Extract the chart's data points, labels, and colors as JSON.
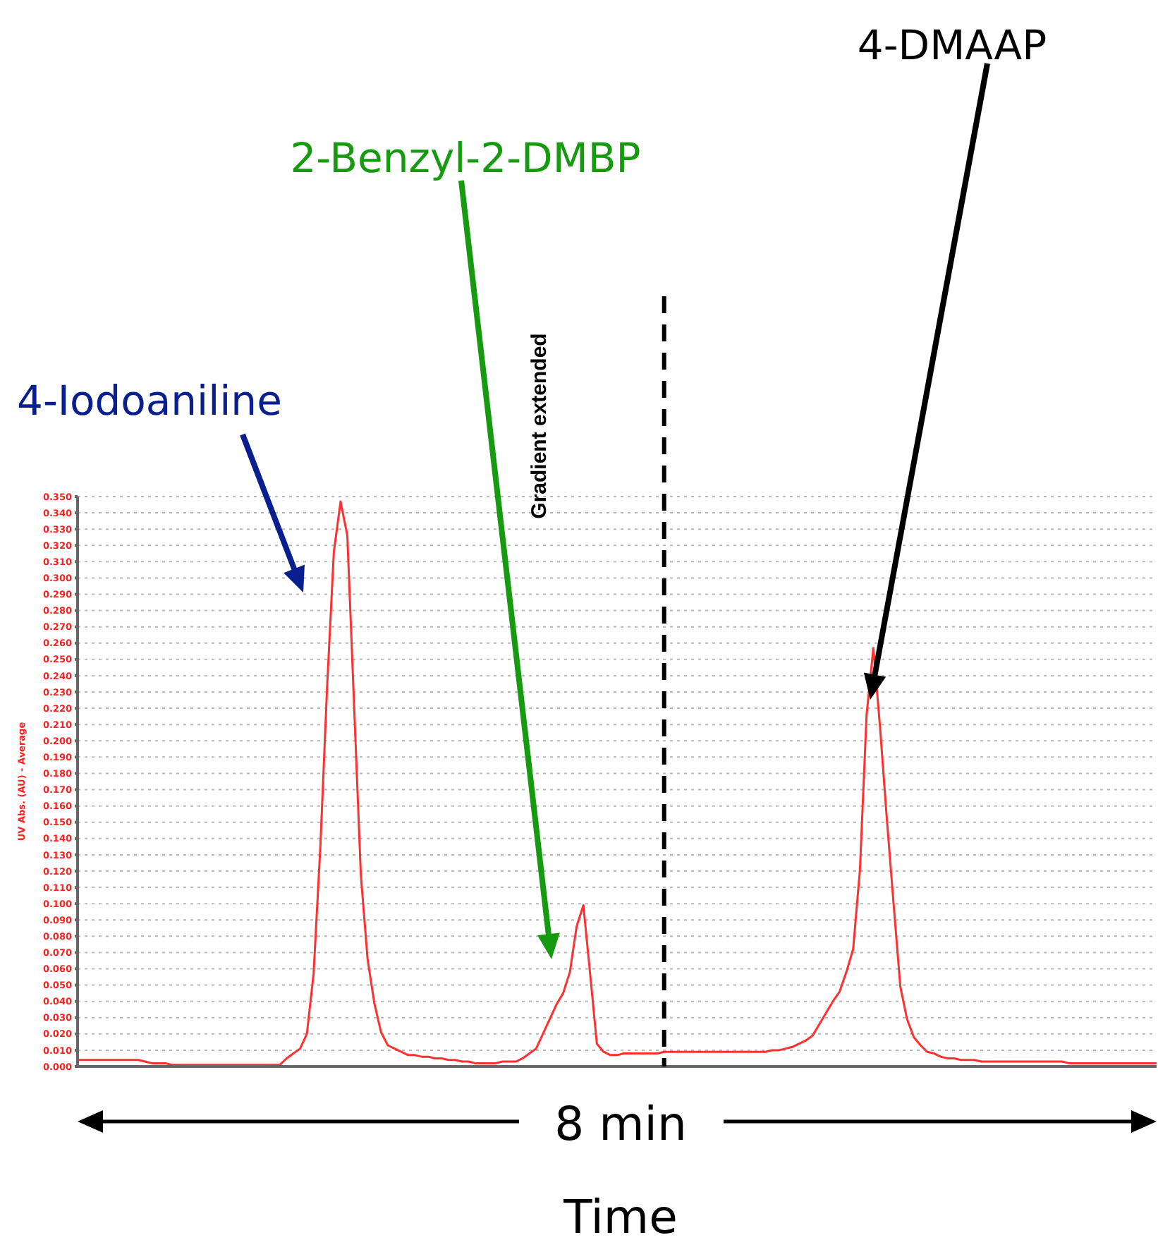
{
  "chart_data": {
    "type": "line",
    "xlabel": "Time",
    "ylabel": "UV Abs. (AU) - Average",
    "categories": [
      null,
      null,
      null,
      null,
      null,
      null,
      null,
      null,
      null,
      null,
      null,
      null,
      null,
      null,
      null,
      null,
      null,
      null,
      null,
      null,
      null,
      null,
      null,
      null,
      null,
      null,
      null,
      null,
      null,
      null,
      null,
      null,
      null,
      null,
      null,
      null,
      null,
      null,
      null,
      null,
      null,
      null,
      null,
      null,
      null,
      null,
      null,
      null,
      null,
      null,
      null,
      null,
      null,
      null,
      null,
      null,
      null,
      null,
      null,
      null,
      null,
      null,
      null,
      null,
      null,
      null,
      null,
      null,
      null,
      null,
      null,
      null,
      null,
      null,
      null,
      null,
      null,
      null,
      null,
      null,
      null,
      null,
      null,
      null,
      null,
      null,
      null,
      null,
      null,
      null,
      null,
      null,
      null,
      null,
      null,
      null,
      null,
      null,
      null,
      null,
      null,
      null,
      null,
      null,
      null,
      null,
      null,
      null,
      null,
      null,
      null,
      null,
      null,
      null,
      null,
      null,
      null,
      null,
      null,
      null,
      null,
      null,
      null,
      null,
      null,
      null,
      null,
      null,
      null,
      null,
      null,
      null,
      null,
      null,
      null,
      null,
      null,
      null,
      null,
      null,
      null,
      null,
      null,
      null,
      null,
      null,
      null,
      null,
      null,
      null,
      null,
      null,
      null,
      null,
      null,
      null,
      null,
      null,
      null,
      null,
      null
    ],
    "series": [
      {
        "color": "#ff3030",
        "values": [
          0.004,
          0.004,
          0.004,
          0.004,
          0.004,
          0.004,
          0.004,
          0.004,
          0.004,
          0.004,
          0.003,
          0.002,
          0.002,
          0.002,
          0.001,
          0.001,
          0.001,
          0.001,
          0.001,
          0.001,
          0.001,
          0.001,
          0.001,
          0.001,
          0.001,
          0.001,
          0.001,
          0.001,
          0.001,
          0.001,
          0.001,
          0.005,
          0.008,
          0.011,
          0.02,
          0.057,
          0.135,
          0.233,
          0.316,
          0.347,
          0.326,
          0.222,
          0.118,
          0.066,
          0.039,
          0.021,
          0.013,
          0.011,
          0.009,
          0.007,
          0.007,
          0.006,
          0.006,
          0.005,
          0.005,
          0.004,
          0.004,
          0.003,
          0.003,
          0.002,
          0.002,
          0.002,
          0.002,
          0.003,
          0.003,
          0.003,
          0.005,
          0.008,
          0.011,
          0.02,
          0.029,
          0.038,
          0.045,
          0.058,
          0.086,
          0.099,
          0.057,
          0.014,
          0.009,
          0.007,
          0.007,
          0.008,
          0.008,
          0.008,
          0.008,
          0.008,
          0.008,
          0.009,
          0.009,
          0.009,
          0.009,
          0.009,
          0.009,
          0.009,
          0.009,
          0.009,
          0.009,
          0.009,
          0.009,
          0.009,
          0.009,
          0.009,
          0.009,
          0.01,
          0.01,
          0.011,
          0.012,
          0.014,
          0.016,
          0.019,
          0.026,
          0.033,
          0.04,
          0.046,
          0.058,
          0.072,
          0.12,
          0.216,
          0.257,
          0.208,
          0.152,
          0.1,
          0.049,
          0.029,
          0.018,
          0.013,
          0.009,
          0.008,
          0.006,
          0.005,
          0.005,
          0.004,
          0.004,
          0.004,
          0.003,
          0.003,
          0.003,
          0.003,
          0.003,
          0.003,
          0.003,
          0.003,
          0.003,
          0.003,
          0.003,
          0.003,
          0.003,
          0.002,
          0.002,
          0.002,
          0.002,
          0.002,
          0.002,
          0.002,
          0.002,
          0.002,
          0.002,
          0.002,
          0.002,
          0.002,
          0.002
        ]
      }
    ],
    "ylim": [
      0,
      0.35
    ],
    "yticks": [
      {
        "value": 0,
        "label": "0.000"
      },
      {
        "value": 0.01,
        "label": "0.010"
      },
      {
        "value": 0.02,
        "label": "0.020"
      },
      {
        "value": 0.03,
        "label": "0.030"
      },
      {
        "value": 0.04,
        "label": "0.040"
      },
      {
        "value": 0.05,
        "label": "0.050"
      },
      {
        "value": 0.06,
        "label": "0.060"
      },
      {
        "value": 0.07,
        "label": "0.070"
      },
      {
        "value": 0.08,
        "label": "0.080"
      },
      {
        "value": 0.09,
        "label": "0.090"
      },
      {
        "value": 0.1,
        "label": "0.100"
      },
      {
        "value": 0.11,
        "label": "0.110"
      },
      {
        "value": 0.12,
        "label": "0.120"
      },
      {
        "value": 0.13,
        "label": "0.130"
      },
      {
        "value": 0.14,
        "label": "0.140"
      },
      {
        "value": 0.15,
        "label": "0.150"
      },
      {
        "value": 0.16,
        "label": "0.160"
      },
      {
        "value": 0.17,
        "label": "0.170"
      },
      {
        "value": 0.18,
        "label": "0.180"
      },
      {
        "value": 0.19,
        "label": "0.190"
      },
      {
        "value": 0.2,
        "label": "0.200"
      },
      {
        "value": 0.21,
        "label": "0.210"
      },
      {
        "value": 0.22,
        "label": "0.220"
      },
      {
        "value": 0.23,
        "label": "0.230"
      },
      {
        "value": 0.24,
        "label": "0.240"
      },
      {
        "value": 0.25,
        "label": "0.250"
      },
      {
        "value": 0.26,
        "label": "0.260"
      },
      {
        "value": 0.27,
        "label": "0.270"
      },
      {
        "value": 0.28,
        "label": "0.280"
      },
      {
        "value": 0.29,
        "label": "0.290"
      },
      {
        "value": 0.3,
        "label": "0.300"
      },
      {
        "value": 0.31,
        "label": "0.310"
      },
      {
        "value": 0.32,
        "label": "0.320"
      },
      {
        "value": 0.33,
        "label": "0.330"
      },
      {
        "value": 0.34,
        "label": "0.340"
      },
      {
        "value": 0.35,
        "label": "0.350"
      }
    ],
    "grid": "y",
    "marker": "none",
    "line_style": "solid",
    "annotations": [
      "4-Iodoaniline",
      "2-Benzyl-2-DMBP",
      "4-DMAAP",
      "Gradient extended",
      "8 min"
    ]
  }
}
